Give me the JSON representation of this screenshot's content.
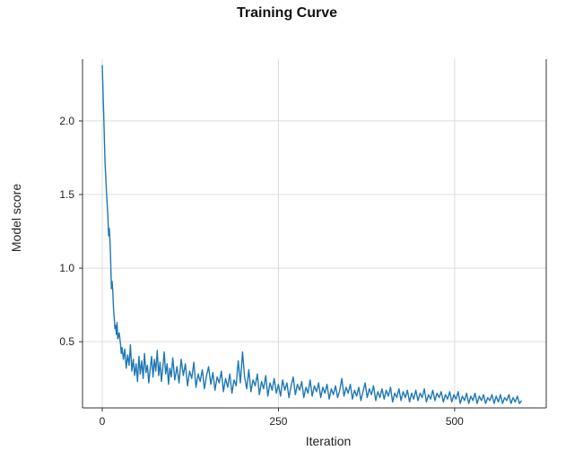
{
  "chart_data": {
    "type": "line",
    "title": "Training Curve",
    "xlabel": "Iteration",
    "ylabel": "Model score",
    "xlim": [
      -28,
      630
    ],
    "ylim": [
      0.05,
      2.42
    ],
    "xticks": [
      0,
      250,
      500
    ],
    "yticks": [
      0.5,
      1.0,
      1.5,
      2.0
    ],
    "grid": true,
    "legend": "none",
    "line_color": "#1f77b4",
    "series": [
      {
        "values": [
          [
            0,
            2.38
          ],
          [
            2,
            2.05
          ],
          [
            4,
            1.72
          ],
          [
            6,
            1.52
          ],
          [
            8,
            1.35
          ],
          [
            9,
            1.22
          ],
          [
            10,
            1.27
          ],
          [
            11,
            1.19
          ],
          [
            12,
            1.05
          ],
          [
            13,
            0.86
          ],
          [
            14,
            0.91
          ],
          [
            15,
            0.84
          ],
          [
            16,
            0.72
          ],
          [
            17,
            0.66
          ],
          [
            18,
            0.59
          ],
          [
            19,
            0.61
          ],
          [
            20,
            0.55
          ],
          [
            21,
            0.63
          ],
          [
            22,
            0.52
          ],
          [
            24,
            0.56
          ],
          [
            26,
            0.48
          ],
          [
            27,
            0.42
          ],
          [
            28,
            0.46
          ],
          [
            30,
            0.38
          ],
          [
            32,
            0.45
          ],
          [
            34,
            0.32
          ],
          [
            36,
            0.41
          ],
          [
            38,
            0.34
          ],
          [
            40,
            0.48
          ],
          [
            42,
            0.3
          ],
          [
            44,
            0.38
          ],
          [
            46,
            0.27
          ],
          [
            48,
            0.35
          ],
          [
            50,
            0.23
          ],
          [
            52,
            0.4
          ],
          [
            54,
            0.28
          ],
          [
            56,
            0.37
          ],
          [
            58,
            0.25
          ],
          [
            60,
            0.42
          ],
          [
            62,
            0.29
          ],
          [
            64,
            0.34
          ],
          [
            66,
            0.22
          ],
          [
            68,
            0.31
          ],
          [
            70,
            0.4
          ],
          [
            72,
            0.26
          ],
          [
            74,
            0.38
          ],
          [
            76,
            0.3
          ],
          [
            78,
            0.44
          ],
          [
            80,
            0.27
          ],
          [
            82,
            0.36
          ],
          [
            84,
            0.23
          ],
          [
            86,
            0.33
          ],
          [
            88,
            0.43
          ],
          [
            90,
            0.28
          ],
          [
            92,
            0.35
          ],
          [
            94,
            0.21
          ],
          [
            96,
            0.32
          ],
          [
            98,
            0.26
          ],
          [
            100,
            0.39
          ],
          [
            103,
            0.24
          ],
          [
            106,
            0.33
          ],
          [
            109,
            0.22
          ],
          [
            112,
            0.38
          ],
          [
            115,
            0.27
          ],
          [
            118,
            0.35
          ],
          [
            121,
            0.2
          ],
          [
            124,
            0.3
          ],
          [
            127,
            0.25
          ],
          [
            130,
            0.36
          ],
          [
            133,
            0.19
          ],
          [
            136,
            0.28
          ],
          [
            139,
            0.23
          ],
          [
            142,
            0.31
          ],
          [
            145,
            0.18
          ],
          [
            148,
            0.27
          ],
          [
            151,
            0.33
          ],
          [
            154,
            0.21
          ],
          [
            157,
            0.29
          ],
          [
            160,
            0.17
          ],
          [
            163,
            0.26
          ],
          [
            166,
            0.22
          ],
          [
            169,
            0.3
          ],
          [
            172,
            0.16
          ],
          [
            175,
            0.25
          ],
          [
            178,
            0.19
          ],
          [
            181,
            0.28
          ],
          [
            184,
            0.15
          ],
          [
            187,
            0.24
          ],
          [
            190,
            0.2
          ],
          [
            193,
            0.37
          ],
          [
            196,
            0.22
          ],
          [
            199,
            0.43
          ],
          [
            202,
            0.26
          ],
          [
            205,
            0.18
          ],
          [
            208,
            0.31
          ],
          [
            211,
            0.16
          ],
          [
            214,
            0.24
          ],
          [
            217,
            0.2
          ],
          [
            220,
            0.28
          ],
          [
            223,
            0.14
          ],
          [
            226,
            0.23
          ],
          [
            229,
            0.18
          ],
          [
            232,
            0.27
          ],
          [
            235,
            0.13
          ],
          [
            238,
            0.22
          ],
          [
            241,
            0.17
          ],
          [
            244,
            0.25
          ],
          [
            247,
            0.15
          ],
          [
            250,
            0.21
          ],
          [
            253,
            0.13
          ],
          [
            256,
            0.24
          ],
          [
            259,
            0.17
          ],
          [
            262,
            0.22
          ],
          [
            265,
            0.12
          ],
          [
            268,
            0.2
          ],
          [
            271,
            0.26
          ],
          [
            274,
            0.14
          ],
          [
            277,
            0.21
          ],
          [
            280,
            0.17
          ],
          [
            283,
            0.23
          ],
          [
            286,
            0.12
          ],
          [
            289,
            0.19
          ],
          [
            292,
            0.15
          ],
          [
            295,
            0.24
          ],
          [
            298,
            0.13
          ],
          [
            301,
            0.2
          ],
          [
            304,
            0.16
          ],
          [
            307,
            0.22
          ],
          [
            310,
            0.12
          ],
          [
            313,
            0.19
          ],
          [
            316,
            0.15
          ],
          [
            319,
            0.21
          ],
          [
            322,
            0.11
          ],
          [
            325,
            0.18
          ],
          [
            328,
            0.14
          ],
          [
            331,
            0.2
          ],
          [
            334,
            0.12
          ],
          [
            337,
            0.17
          ],
          [
            340,
            0.25
          ],
          [
            343,
            0.13
          ],
          [
            346,
            0.19
          ],
          [
            349,
            0.15
          ],
          [
            352,
            0.21
          ],
          [
            355,
            0.11
          ],
          [
            358,
            0.17
          ],
          [
            361,
            0.13
          ],
          [
            364,
            0.19
          ],
          [
            367,
            0.1
          ],
          [
            370,
            0.16
          ],
          [
            373,
            0.22
          ],
          [
            376,
            0.12
          ],
          [
            379,
            0.18
          ],
          [
            382,
            0.14
          ],
          [
            385,
            0.2
          ],
          [
            388,
            0.1
          ],
          [
            391,
            0.16
          ],
          [
            394,
            0.12
          ],
          [
            397,
            0.18
          ],
          [
            400,
            0.11
          ],
          [
            403,
            0.17
          ],
          [
            406,
            0.13
          ],
          [
            409,
            0.19
          ],
          [
            412,
            0.09
          ],
          [
            415,
            0.15
          ],
          [
            418,
            0.12
          ],
          [
            421,
            0.18
          ],
          [
            424,
            0.1
          ],
          [
            427,
            0.16
          ],
          [
            430,
            0.12
          ],
          [
            433,
            0.17
          ],
          [
            436,
            0.09
          ],
          [
            439,
            0.15
          ],
          [
            442,
            0.11
          ],
          [
            445,
            0.17
          ],
          [
            448,
            0.1
          ],
          [
            451,
            0.15
          ],
          [
            454,
            0.12
          ],
          [
            457,
            0.18
          ],
          [
            460,
            0.09
          ],
          [
            463,
            0.14
          ],
          [
            466,
            0.11
          ],
          [
            469,
            0.17
          ],
          [
            472,
            0.1
          ],
          [
            475,
            0.15
          ],
          [
            478,
            0.12
          ],
          [
            481,
            0.16
          ],
          [
            484,
            0.09
          ],
          [
            487,
            0.14
          ],
          [
            490,
            0.11
          ],
          [
            493,
            0.16
          ],
          [
            496,
            0.09
          ],
          [
            499,
            0.14
          ],
          [
            502,
            0.11
          ],
          [
            505,
            0.16
          ],
          [
            508,
            0.08
          ],
          [
            511,
            0.13
          ],
          [
            514,
            0.1
          ],
          [
            517,
            0.15
          ],
          [
            520,
            0.08
          ],
          [
            523,
            0.13
          ],
          [
            526,
            0.1
          ],
          [
            529,
            0.15
          ],
          [
            532,
            0.08
          ],
          [
            535,
            0.13
          ],
          [
            538,
            0.1
          ],
          [
            541,
            0.14
          ],
          [
            544,
            0.08
          ],
          [
            547,
            0.12
          ],
          [
            550,
            0.1
          ],
          [
            553,
            0.14
          ],
          [
            556,
            0.08
          ],
          [
            559,
            0.13
          ],
          [
            562,
            0.09
          ],
          [
            565,
            0.14
          ],
          [
            568,
            0.08
          ],
          [
            571,
            0.12
          ],
          [
            574,
            0.1
          ],
          [
            577,
            0.14
          ],
          [
            580,
            0.08
          ],
          [
            583,
            0.12
          ],
          [
            586,
            0.09
          ],
          [
            589,
            0.13
          ],
          [
            592,
            0.08
          ],
          [
            595,
            0.1
          ]
        ]
      }
    ]
  }
}
